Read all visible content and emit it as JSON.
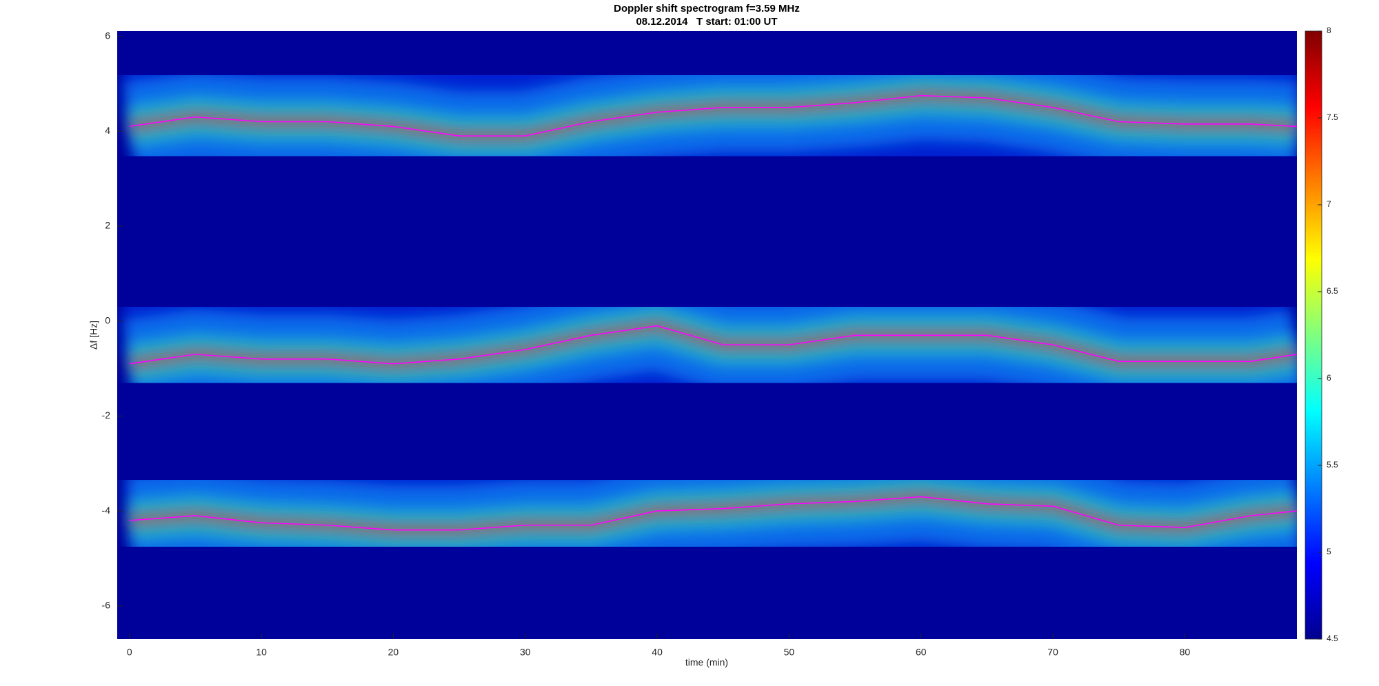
{
  "chart_data": {
    "type": "line",
    "title": "Doppler shift spectrogram f=3.59 MHz",
    "subtitle": "08.12.2014   T start: 01:00 UT",
    "x_label": "time (min)",
    "y_label": "Δf [Hz]",
    "x": [
      0,
      5,
      10,
      15,
      20,
      25,
      30,
      35,
      40,
      45,
      50,
      55,
      60,
      65,
      70,
      75,
      80,
      85,
      88.5
    ],
    "series": [
      {
        "color": "#ff00ff",
        "values": [
          4.1,
          4.3,
          4.2,
          4.2,
          4.1,
          3.9,
          3.9,
          4.2,
          4.4,
          4.5,
          4.5,
          4.6,
          4.75,
          4.7,
          4.5,
          4.2,
          4.15,
          4.15,
          4.1
        ]
      },
      {
        "color": "#ff00ff",
        "values": [
          -0.9,
          -0.7,
          -0.8,
          -0.8,
          -0.9,
          -0.8,
          -0.6,
          -0.3,
          -0.1,
          -0.5,
          -0.5,
          -0.3,
          -0.3,
          -0.3,
          -0.5,
          -0.85,
          -0.85,
          -0.85,
          -0.7
        ]
      },
      {
        "color": "#ff00ff",
        "values": [
          -4.2,
          -4.1,
          -4.25,
          -4.3,
          -4.4,
          -4.4,
          -4.3,
          -4.3,
          -4.0,
          -3.95,
          -3.85,
          -3.8,
          -3.7,
          -3.85,
          -3.9,
          -4.3,
          -4.35,
          -4.1,
          -4.0
        ]
      }
    ],
    "xlim": [
      -0.93,
      88.5
    ],
    "xticks": [
      0,
      10,
      20,
      30,
      40,
      50,
      60,
      70,
      80
    ],
    "ylim": [
      -6.7,
      6.11
    ],
    "yticks": [
      -6,
      -4,
      -2,
      0,
      2,
      4,
      6
    ],
    "colorbar": {
      "lim": [
        4.5,
        8
      ],
      "ticks": [
        4.5,
        5,
        5.5,
        6,
        6.5,
        7,
        7.5,
        8
      ]
    }
  }
}
